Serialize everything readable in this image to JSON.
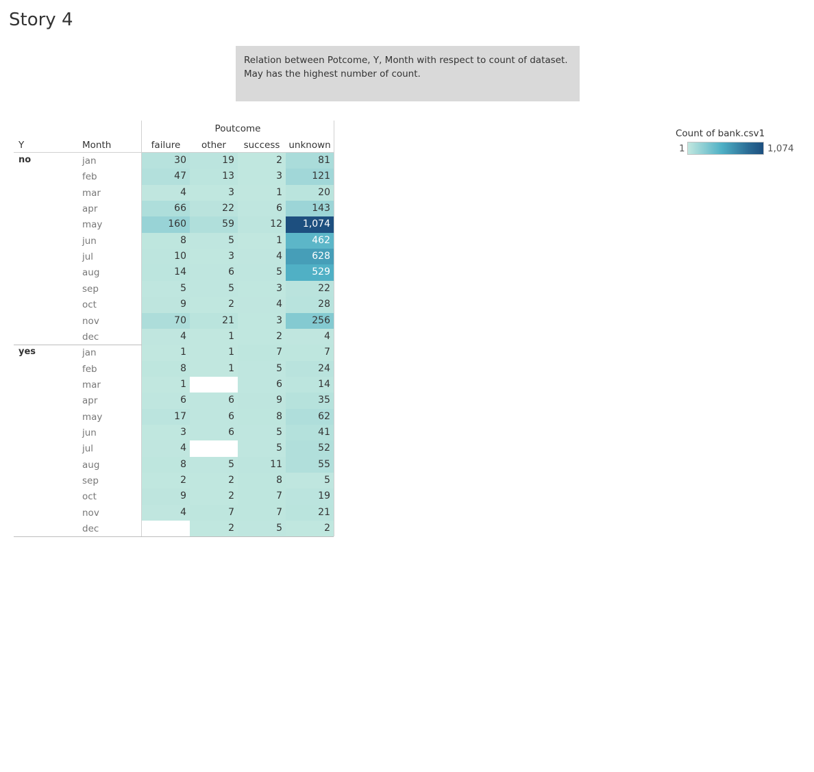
{
  "story": {
    "title": "Story 4",
    "caption_line1": "Relation between Potcome, Y, Month with respect to count of dataset.",
    "caption_line2": "May has the highest number of count."
  },
  "legend": {
    "title": "Count of bank.csv1",
    "min_label": "1",
    "max_label": "1,074"
  },
  "colors": {
    "low": "#c1e7df",
    "mid": "#4fb0c5",
    "high": "#1d4f7f",
    "text_dark": "#333333",
    "text_light": "#ffffff"
  },
  "chart_data": {
    "type": "heatmap",
    "title": "",
    "column_group_label": "Poutcome",
    "row_header": "Y",
    "row_subheader": "Month",
    "columns": [
      "failure",
      "other",
      "success",
      "unknown"
    ],
    "color_range": [
      1,
      1074
    ],
    "rows": [
      {
        "y": "no",
        "month": "jan",
        "values": [
          30,
          19,
          2,
          81
        ]
      },
      {
        "y": "",
        "month": "feb",
        "values": [
          47,
          13,
          3,
          121
        ]
      },
      {
        "y": "",
        "month": "mar",
        "values": [
          4,
          3,
          1,
          20
        ]
      },
      {
        "y": "",
        "month": "apr",
        "values": [
          66,
          22,
          6,
          143
        ]
      },
      {
        "y": "",
        "month": "may",
        "values": [
          160,
          59,
          12,
          1074
        ]
      },
      {
        "y": "",
        "month": "jun",
        "values": [
          8,
          5,
          1,
          462
        ]
      },
      {
        "y": "",
        "month": "jul",
        "values": [
          10,
          3,
          4,
          628
        ]
      },
      {
        "y": "",
        "month": "aug",
        "values": [
          14,
          6,
          5,
          529
        ]
      },
      {
        "y": "",
        "month": "sep",
        "values": [
          5,
          5,
          3,
          22
        ]
      },
      {
        "y": "",
        "month": "oct",
        "values": [
          9,
          2,
          4,
          28
        ]
      },
      {
        "y": "",
        "month": "nov",
        "values": [
          70,
          21,
          3,
          256
        ]
      },
      {
        "y": "",
        "month": "dec",
        "values": [
          4,
          1,
          2,
          4
        ]
      },
      {
        "y": "yes",
        "month": "jan",
        "values": [
          1,
          1,
          7,
          7
        ]
      },
      {
        "y": "",
        "month": "feb",
        "values": [
          8,
          1,
          5,
          24
        ]
      },
      {
        "y": "",
        "month": "mar",
        "values": [
          1,
          null,
          6,
          14
        ]
      },
      {
        "y": "",
        "month": "apr",
        "values": [
          6,
          6,
          9,
          35
        ]
      },
      {
        "y": "",
        "month": "may",
        "values": [
          17,
          6,
          8,
          62
        ]
      },
      {
        "y": "",
        "month": "jun",
        "values": [
          3,
          6,
          5,
          41
        ]
      },
      {
        "y": "",
        "month": "jul",
        "values": [
          4,
          null,
          5,
          52
        ]
      },
      {
        "y": "",
        "month": "aug",
        "values": [
          8,
          5,
          11,
          55
        ]
      },
      {
        "y": "",
        "month": "sep",
        "values": [
          2,
          2,
          8,
          5
        ]
      },
      {
        "y": "",
        "month": "oct",
        "values": [
          9,
          2,
          7,
          19
        ]
      },
      {
        "y": "",
        "month": "nov",
        "values": [
          4,
          7,
          7,
          21
        ]
      },
      {
        "y": "",
        "month": "dec",
        "values": [
          null,
          2,
          5,
          2
        ]
      }
    ]
  }
}
